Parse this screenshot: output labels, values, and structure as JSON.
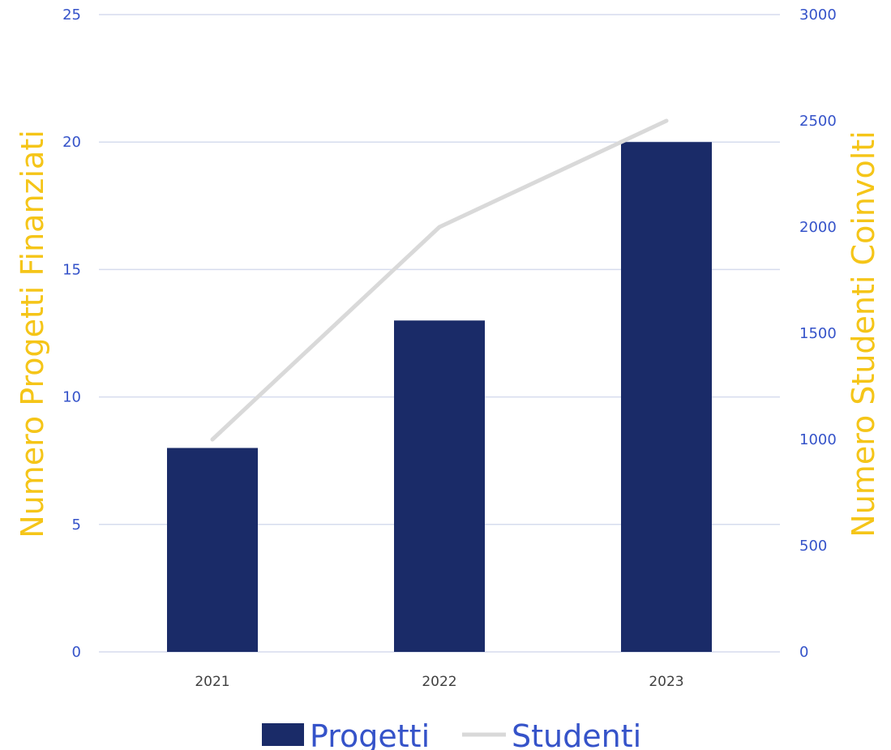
{
  "chart_data": {
    "type": "bar",
    "categories": [
      "2021",
      "2022",
      "2023"
    ],
    "series": [
      {
        "name": "Progetti",
        "kind": "bar",
        "axis": "left",
        "color": "#1A2B68",
        "values": [
          8,
          13,
          20
        ]
      },
      {
        "name": "Studenti",
        "kind": "line",
        "axis": "right",
        "color": "#D9D9D9",
        "values": [
          1000,
          2000,
          2500
        ]
      }
    ],
    "y_left": {
      "label": "Numero Progetti Finanziati",
      "ylim": [
        0,
        25
      ],
      "ticks": [
        "0",
        "5",
        "10",
        "15",
        "20",
        "25"
      ]
    },
    "y_right": {
      "label": "Numero Studenti Coinvolti",
      "ylim": [
        0,
        3000
      ],
      "ticks": [
        "0",
        "500",
        "1000",
        "1500",
        "2000",
        "2500",
        "3000"
      ]
    },
    "grid": true,
    "legend_position": "bottom",
    "colors": {
      "tick_text": "#3553C9",
      "axis_title": "#F5C518",
      "gridline": "#D6DCEE",
      "x_tick_text": "#404040"
    }
  }
}
